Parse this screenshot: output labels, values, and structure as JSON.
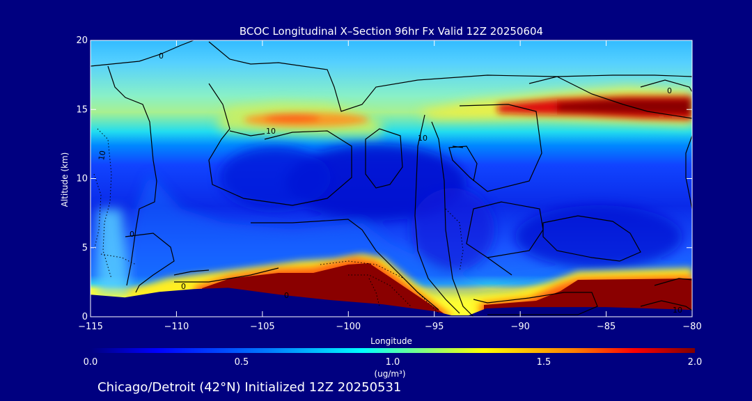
{
  "chart_data": {
    "type": "heatmap",
    "title": "BCOC Longitudinal X–Section 96hr  Fx Valid 12Z 20250604",
    "xlabel": "Longitude",
    "ylabel": "Altitude (km)",
    "xlim": [
      -115,
      -80
    ],
    "ylim": [
      0,
      20
    ],
    "x_ticks": [
      -115,
      -110,
      -105,
      -100,
      -95,
      -90,
      -85,
      -80
    ],
    "x_tick_labels": [
      "−115",
      "−110",
      "−105",
      "−100",
      "−95",
      "−90",
      "−85",
      "−80"
    ],
    "y_ticks": [
      0,
      5,
      10,
      15,
      20
    ],
    "y_tick_labels": [
      "0",
      "5",
      "10",
      "15",
      "20"
    ],
    "colorbar": {
      "min": 0.0,
      "max": 2.0,
      "ticks": [
        0.0,
        0.5,
        1.0,
        1.5,
        2.0
      ],
      "tick_labels": [
        "0.0",
        "0.5",
        "1.0",
        "1.5",
        "2.0"
      ],
      "unit_label": "(ug/m³)",
      "colormap": [
        "#00007f",
        "#0000ff",
        "#0080ff",
        "#00ffff",
        "#80ff80",
        "#ffff00",
        "#ff8000",
        "#ff0000",
        "#7f0000"
      ]
    },
    "contour_labels": [
      "0",
      "10",
      "10",
      "0",
      "10",
      "0",
      "0",
      "10",
      "0"
    ],
    "caption": "Chicago/Detroit (42°N) Initialized 12Z 20250531",
    "terrain": {
      "x": [
        -115,
        -113,
        -111,
        -109,
        -107,
        -104,
        -101,
        -98,
        -95,
        -94,
        -93,
        -92,
        -90,
        -85,
        -80
      ],
      "y": [
        1.6,
        1.4,
        1.8,
        2.0,
        2.1,
        1.6,
        1.2,
        0.9,
        0.4,
        0.1,
        0.1,
        0.6,
        0.7,
        0.7,
        0.5
      ]
    },
    "regions": [
      {
        "name": "upper layer yellow-green",
        "value": 1.15,
        "x": [
          -107,
          -96
        ],
        "y": [
          13.8,
          15.5
        ]
      },
      {
        "name": "upper layer orange west",
        "value": 1.5,
        "x": [
          -105,
          -101
        ],
        "y": [
          13.9,
          14.7
        ]
      },
      {
        "name": "upper layer red east",
        "value": 1.95,
        "x": [
          -89,
          -80
        ],
        "y": [
          14.5,
          15.8
        ]
      },
      {
        "name": "boundary layer red west",
        "value": 2.0,
        "x": [
          -107,
          -95
        ],
        "y": [
          1.0,
          3.0
        ]
      },
      {
        "name": "boundary layer red east",
        "value": 2.0,
        "x": [
          -93,
          -80
        ],
        "y": [
          0.6,
          3.0
        ]
      }
    ]
  }
}
